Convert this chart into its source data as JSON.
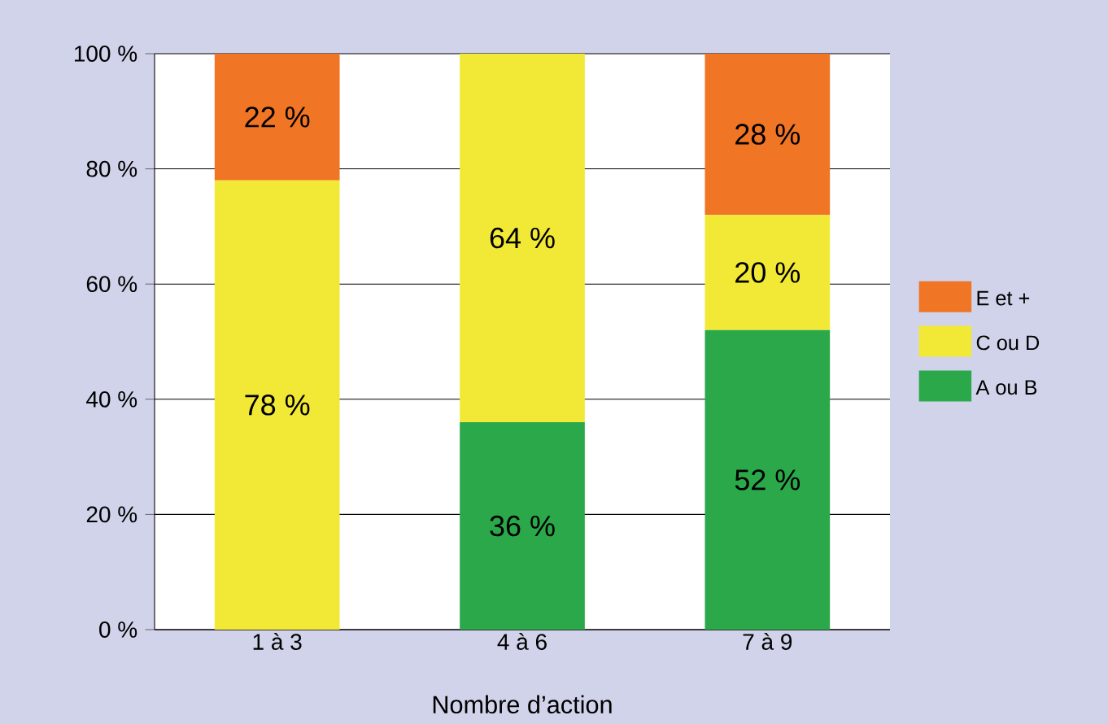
{
  "chart_data": {
    "type": "bar",
    "stacked": true,
    "xlabel": "Nombre d’action",
    "categories": [
      "1 à 3",
      "4 à 6",
      "7 à 9"
    ],
    "series": [
      {
        "name": "A ou B",
        "color": "#2aa84a",
        "values": [
          0,
          36,
          52
        ],
        "value_labels": [
          null,
          "36 %",
          "52 %"
        ]
      },
      {
        "name": "C ou D",
        "color": "#f2e936",
        "values": [
          78,
          64,
          20
        ],
        "value_labels": [
          "78 %",
          "64 %",
          "20 %"
        ]
      },
      {
        "name": "E et +",
        "color": "#f07524",
        "values": [
          22,
          0,
          28
        ],
        "value_labels": [
          "22 %",
          null,
          "28 %"
        ]
      }
    ],
    "ylim": [
      0,
      100
    ],
    "yticks": [
      {
        "value": 0,
        "label": "0 %"
      },
      {
        "value": 20,
        "label": "20 %"
      },
      {
        "value": 40,
        "label": "40 %"
      },
      {
        "value": 60,
        "label": "60 %"
      },
      {
        "value": 80,
        "label": "80 %"
      },
      {
        "value": 100,
        "label": "100 %"
      }
    ],
    "grid": "y",
    "legend": "right"
  }
}
